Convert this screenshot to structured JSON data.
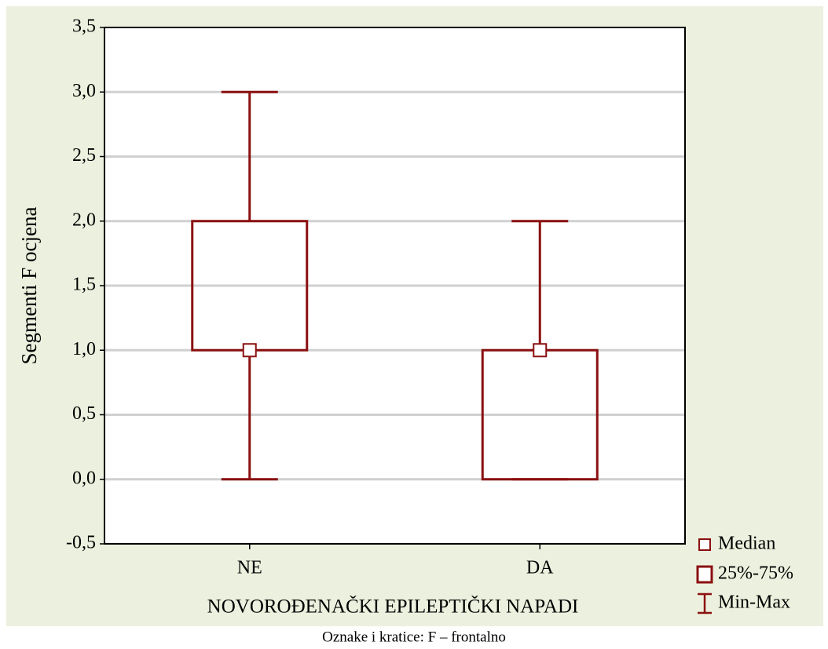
{
  "chart_data": {
    "type": "box",
    "x_label": "NOVOROĐENAČKI EPILEPTIČKI NAPADI",
    "y_label": "Segmenti F ocjena",
    "categories": [
      "NE",
      "DA"
    ],
    "min": [
      0,
      0
    ],
    "q1": [
      1,
      0
    ],
    "median": [
      1,
      1
    ],
    "q3": [
      2,
      1
    ],
    "max": [
      3,
      2
    ],
    "color": "#8b1010",
    "ylim": [
      -0.5,
      3.5
    ],
    "yticks": [
      {
        "value": -0.5,
        "label": "-0,5"
      },
      {
        "value": 0,
        "label": "0,0"
      },
      {
        "value": 0.5,
        "label": "0,5"
      },
      {
        "value": 1,
        "label": "1,0"
      },
      {
        "value": 1.5,
        "label": "1,5"
      },
      {
        "value": 2,
        "label": "2,0"
      },
      {
        "value": 2.5,
        "label": "2,5"
      },
      {
        "value": 3,
        "label": "3,0"
      },
      {
        "value": 3.5,
        "label": "3,5"
      }
    ],
    "grid": true,
    "legend": [
      "Median",
      "25%-75%",
      "Min-Max"
    ],
    "caption": "Oznake i kratice: F – frontalno"
  }
}
